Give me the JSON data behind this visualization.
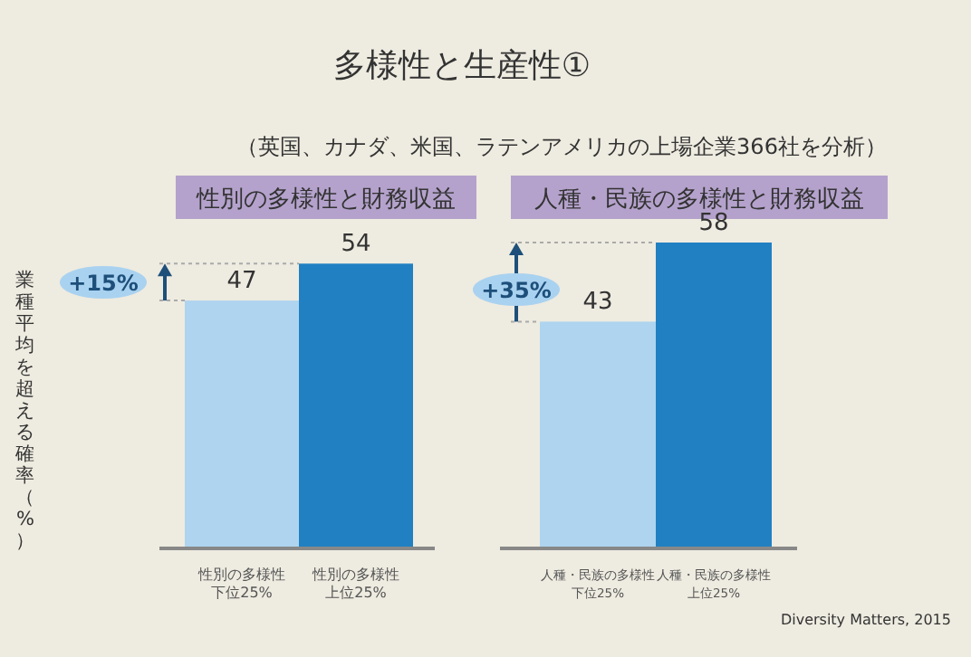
{
  "chart_data": [
    {
      "type": "bar",
      "title": "性別の多様性と財務収益",
      "ylabel": "業種平均を超える確率（%）",
      "categories": [
        "性別の多様性下位25%",
        "性別の多様性上位25%"
      ],
      "values": [
        47,
        54
      ],
      "colors": [
        "#aed4ef",
        "#2180c2"
      ],
      "data_labels": true,
      "annotations": [
        "多様性と生産性①",
        "（英国、カナダ、米国、ラテンアメリカの上場企業366社を分析）",
        "+15%"
      ]
    },
    {
      "type": "bar",
      "title": "人種・民族の多様性と財務収益",
      "categories": [
        "人種・民族の多様性下位25%",
        "人種・民族の多様性上位25%"
      ],
      "values": [
        43,
        58
      ],
      "colors": [
        "#aed4ef",
        "#2180c2"
      ],
      "data_labels": true,
      "annotations": [
        "+35%",
        "Diversity Matters, 2015"
      ]
    }
  ]
}
